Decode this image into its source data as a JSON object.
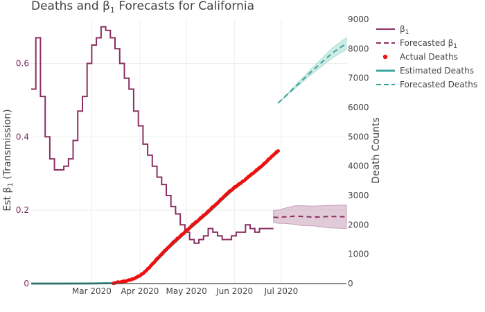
{
  "chart_data": {
    "type": "line",
    "title": "Deaths and β₁ Forecasts for California",
    "title_main": "Deaths and β",
    "title_sub": "1",
    "title_rest": " Forecasts for California",
    "y_left": {
      "label": "Est β₁ (Transmission)",
      "label_main": "Est β",
      "label_sub": "1",
      "label_rest": " (Transmission)",
      "range": [
        0,
        0.72
      ],
      "ticks": [
        0,
        0.2,
        0.4,
        0.6
      ],
      "tick_labels": [
        "0",
        "0.2",
        "0.4",
        "0.6"
      ],
      "color": "#7b2a5c"
    },
    "y_right": {
      "label": "Death Counts",
      "range": [
        0,
        9000
      ],
      "ticks": [
        0,
        1000,
        2000,
        3000,
        4000,
        5000,
        6000,
        7000,
        8000,
        9000
      ],
      "tick_labels": [
        "0",
        "1000",
        "2000",
        "3000",
        "4000",
        "5000",
        "6000",
        "7000",
        "8000",
        "9000"
      ]
    },
    "x_axis": {
      "range": [
        "2020-01-22",
        "2020-08-12"
      ],
      "ticks": [
        "2020-03-01",
        "2020-04-01",
        "2020-05-01",
        "2020-06-01",
        "2020-07-01"
      ],
      "tick_labels": [
        "Mar 2020",
        "Apr 2020",
        "May 2020",
        "Jun 2020",
        "Jul 2020"
      ]
    },
    "grid": true,
    "legend_position": "right",
    "colors": {
      "beta": "#8b2f60",
      "beta_band": "#c9a0b8",
      "deaths_actual": "#ee1111",
      "deaths_est": "#3aa39a",
      "deaths_band": "#a6dccf"
    },
    "legend": [
      {
        "label": "β₁",
        "label_main": "β",
        "label_sub": "1",
        "style": "beta-solid"
      },
      {
        "label": "Forecasted β₁",
        "label_main": "Forecasted  β",
        "label_sub": "1",
        "style": "beta-dash"
      },
      {
        "label": "Actual Deaths",
        "label_main": "Actual Deaths",
        "label_sub": "",
        "style": "dot"
      },
      {
        "label": "Estimated Deaths",
        "label_main": "Estimated Deaths",
        "label_sub": "",
        "style": "teal-solid"
      },
      {
        "label": "Forecasted Deaths",
        "label_main": "Forecasted Deaths",
        "label_sub": "",
        "style": "teal-dash"
      }
    ],
    "series": [
      {
        "name": "β₁",
        "axis": "left",
        "line_shape": "step",
        "x": [
          "2020-01-22",
          "2020-01-25",
          "2020-01-28",
          "2020-01-31",
          "2020-02-03",
          "2020-02-06",
          "2020-02-09",
          "2020-02-12",
          "2020-02-15",
          "2020-02-18",
          "2020-02-21",
          "2020-02-24",
          "2020-02-27",
          "2020-03-01",
          "2020-03-04",
          "2020-03-07",
          "2020-03-10",
          "2020-03-13",
          "2020-03-16",
          "2020-03-19",
          "2020-03-22",
          "2020-03-25",
          "2020-03-28",
          "2020-03-31",
          "2020-04-03",
          "2020-04-06",
          "2020-04-09",
          "2020-04-12",
          "2020-04-15",
          "2020-04-18",
          "2020-04-21",
          "2020-04-24",
          "2020-04-27",
          "2020-04-30",
          "2020-05-03",
          "2020-05-06",
          "2020-05-09",
          "2020-05-12",
          "2020-05-15",
          "2020-05-18",
          "2020-05-21",
          "2020-05-24",
          "2020-05-27",
          "2020-05-30",
          "2020-06-02",
          "2020-06-05",
          "2020-06-08",
          "2020-06-11",
          "2020-06-14",
          "2020-06-17",
          "2020-06-20",
          "2020-06-23"
        ],
        "values": [
          0.53,
          0.67,
          0.51,
          0.4,
          0.34,
          0.31,
          0.31,
          0.32,
          0.34,
          0.39,
          0.47,
          0.51,
          0.6,
          0.65,
          0.67,
          0.7,
          0.69,
          0.67,
          0.64,
          0.6,
          0.56,
          0.53,
          0.47,
          0.43,
          0.38,
          0.35,
          0.32,
          0.29,
          0.27,
          0.24,
          0.21,
          0.19,
          0.16,
          0.14,
          0.12,
          0.11,
          0.12,
          0.13,
          0.15,
          0.14,
          0.13,
          0.12,
          0.12,
          0.13,
          0.14,
          0.14,
          0.16,
          0.15,
          0.14,
          0.15,
          0.15,
          0.15
        ]
      },
      {
        "name": "Forecasted β₁",
        "axis": "left",
        "x": [
          "2020-06-26",
          "2020-06-30",
          "2020-07-03",
          "2020-07-06",
          "2020-07-10",
          "2020-07-15",
          "2020-07-22",
          "2020-08-01",
          "2020-08-12"
        ],
        "values": [
          0.181,
          0.18,
          0.182,
          0.182,
          0.184,
          0.183,
          0.181,
          0.183,
          0.182
        ],
        "upper": [
          0.199,
          0.201,
          0.205,
          0.208,
          0.212,
          0.212,
          0.211,
          0.213,
          0.214
        ],
        "lower": [
          0.166,
          0.164,
          0.164,
          0.163,
          0.161,
          0.158,
          0.157,
          0.152,
          0.15
        ]
      },
      {
        "name": "Estimated Deaths",
        "axis": "right",
        "x": [
          "2020-01-22",
          "2020-02-10",
          "2020-03-01",
          "2020-03-15",
          "2020-03-22",
          "2020-03-27",
          "2020-04-01",
          "2020-04-05",
          "2020-04-10",
          "2020-04-15",
          "2020-04-20",
          "2020-04-25",
          "2020-05-01",
          "2020-05-06",
          "2020-05-11",
          "2020-05-16",
          "2020-05-21",
          "2020-05-26",
          "2020-06-01",
          "2020-06-06",
          "2020-06-11",
          "2020-06-16",
          "2020-06-21",
          "2020-06-26",
          "2020-06-29"
        ],
        "values": [
          0,
          0,
          2,
          20,
          60,
          130,
          240,
          410,
          680,
          960,
          1230,
          1470,
          1770,
          1995,
          2230,
          2460,
          2710,
          2960,
          3240,
          3440,
          3650,
          3860,
          4090,
          4360,
          4480
        ]
      },
      {
        "name": "Actual Deaths",
        "axis": "right",
        "x": [
          "2020-03-15",
          "2020-03-22",
          "2020-03-27",
          "2020-04-01",
          "2020-04-05",
          "2020-04-10",
          "2020-04-15",
          "2020-04-20",
          "2020-04-25",
          "2020-05-01",
          "2020-05-06",
          "2020-05-11",
          "2020-05-16",
          "2020-05-21",
          "2020-05-26",
          "2020-06-01",
          "2020-06-06",
          "2020-06-11",
          "2020-06-16",
          "2020-06-21",
          "2020-06-26",
          "2020-06-29"
        ],
        "values": [
          20,
          70,
          150,
          260,
          440,
          720,
          1010,
          1280,
          1520,
          1810,
          2040,
          2270,
          2510,
          2750,
          3020,
          3280,
          3470,
          3680,
          3900,
          4130,
          4390,
          4520
        ]
      },
      {
        "name": "Forecasted Deaths",
        "axis": "right",
        "x": [
          "2020-06-29",
          "2020-07-06",
          "2020-07-13",
          "2020-07-20",
          "2020-07-27",
          "2020-08-03",
          "2020-08-12"
        ],
        "values": [
          6150,
          6500,
          6850,
          7200,
          7530,
          7860,
          8180
        ],
        "upper": [
          6160,
          6530,
          6910,
          7290,
          7660,
          8030,
          8380
        ],
        "lower": [
          6140,
          6470,
          6790,
          7110,
          7400,
          7690,
          7980
        ]
      }
    ]
  }
}
